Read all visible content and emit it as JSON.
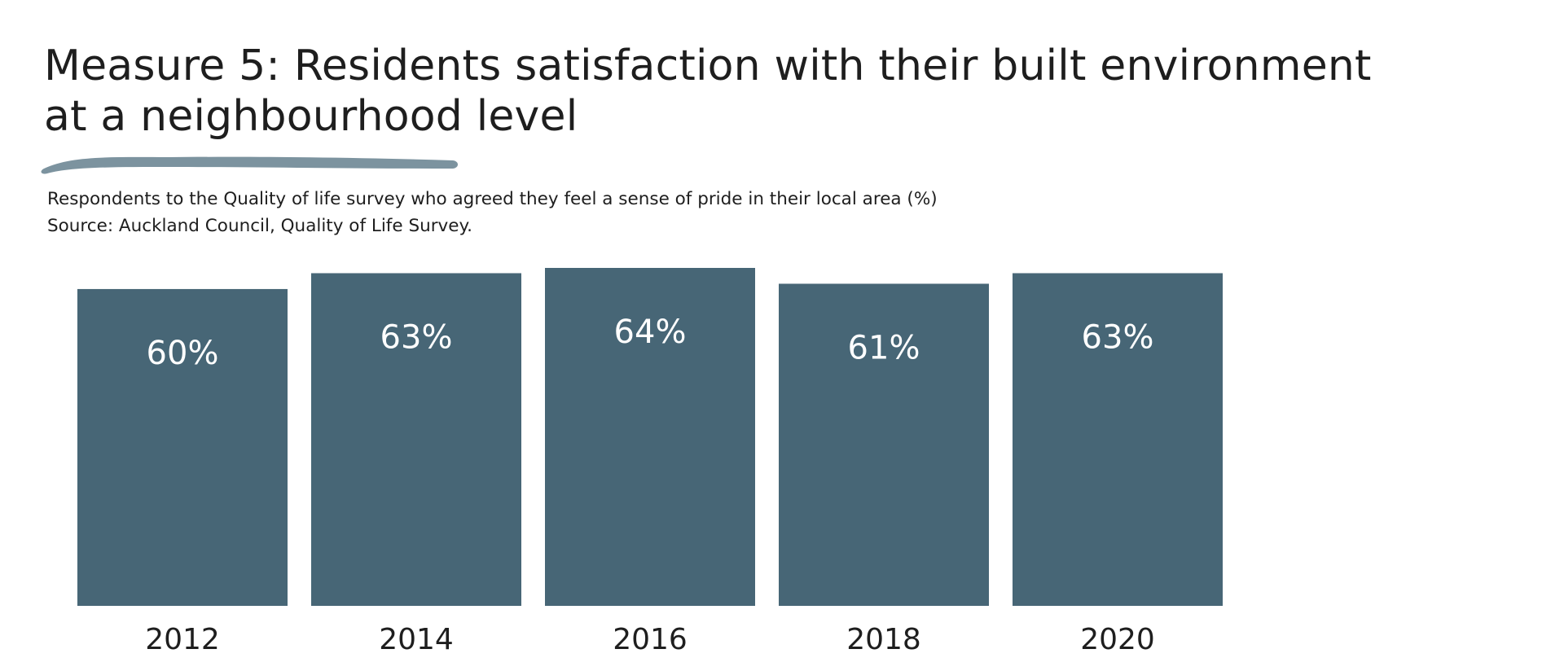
{
  "title": {
    "line1": "Measure 5: Residents satisfaction with their built environment",
    "line2": "at a neighbourhood level"
  },
  "subtitle": {
    "line1": "Respondents to the Quality of life survey who agreed they feel a sense of pride in their local area (%)",
    "line2": "Source: Auckland Council, Quality of Life Survey."
  },
  "colors": {
    "bar": "#476676",
    "underline": "#7c939f",
    "text": "#1e1e1e",
    "bar_label": "#ffffff"
  },
  "chart_data": {
    "type": "bar",
    "title": "Measure 5: Residents satisfaction with their built environment at a neighbourhood level",
    "subtitle": "Respondents to the Quality of life survey who agreed they feel a sense of pride in their local area (%)",
    "categories": [
      "2012",
      "2014",
      "2016",
      "2018",
      "2020"
    ],
    "values": [
      60,
      63,
      64,
      61,
      63
    ],
    "value_labels": [
      "60%",
      "63%",
      "64%",
      "61%",
      "63%"
    ],
    "xlabel": "",
    "ylabel": "",
    "ylim": [
      0,
      64
    ],
    "grid": false,
    "legend": "none"
  }
}
